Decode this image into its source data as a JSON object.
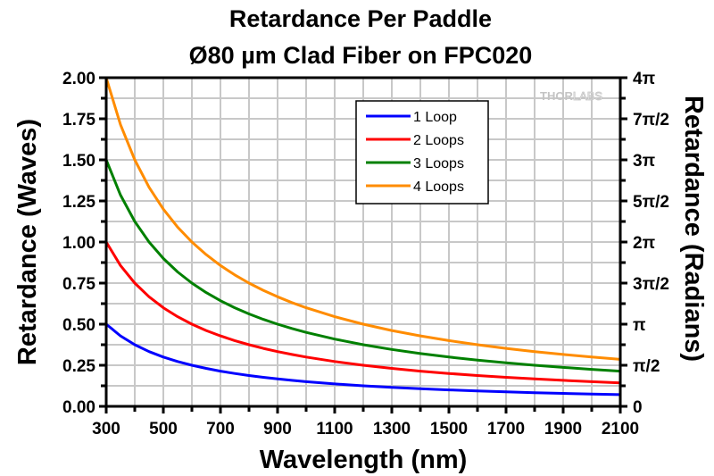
{
  "chart_data": {
    "type": "line",
    "title": [
      "Retardance Per Paddle",
      "Ø80 µm Clad Fiber on FPC020"
    ],
    "xlabel": "Wavelength (nm)",
    "ylabel": "Retardance (Waves)",
    "y2label": "Retardance (Radians)",
    "xlim": [
      300,
      2100
    ],
    "ylim": [
      0,
      2.0
    ],
    "grid": true,
    "x_ticks": [
      300,
      500,
      700,
      900,
      1100,
      1300,
      1500,
      1700,
      1900,
      2100
    ],
    "x_tick_labels": [
      "300",
      "500",
      "700",
      "900",
      "1100",
      "1300",
      "1500",
      "1700",
      "1900",
      "2100"
    ],
    "x_minor_step": 100,
    "y_ticks": [
      0,
      0.25,
      0.5,
      0.75,
      1.0,
      1.25,
      1.5,
      1.75,
      2.0
    ],
    "y_tick_labels": [
      "0.00",
      "0.25",
      "0.50",
      "0.75",
      "1.00",
      "1.25",
      "1.50",
      "1.75",
      "2.00"
    ],
    "y_minor_step": 0.125,
    "y2_tick_labels": [
      "0",
      "π/2",
      "π",
      "3π/2",
      "2π",
      "5π/2",
      "3π",
      "7π/2",
      "4π"
    ],
    "legend_position": "top-center",
    "watermark": {
      "bold": "THOR",
      "outline": "LABS"
    },
    "x": [
      300,
      350,
      400,
      450,
      500,
      550,
      600,
      650,
      700,
      750,
      800,
      850,
      900,
      950,
      1000,
      1100,
      1200,
      1300,
      1400,
      1500,
      1600,
      1700,
      1800,
      1900,
      2000,
      2100
    ],
    "series": [
      {
        "name": "1 Loop",
        "color": "#0000ff",
        "values": [
          0.5,
          0.4286,
          0.375,
          0.3333,
          0.3,
          0.2727,
          0.25,
          0.2308,
          0.2143,
          0.2,
          0.1875,
          0.1765,
          0.1667,
          0.1579,
          0.15,
          0.1364,
          0.125,
          0.1154,
          0.1071,
          0.1,
          0.0938,
          0.0882,
          0.0833,
          0.0789,
          0.075,
          0.0714
        ]
      },
      {
        "name": "2 Loops",
        "color": "#ff0000",
        "values": [
          1.0,
          0.8571,
          0.75,
          0.6667,
          0.6,
          0.5455,
          0.5,
          0.4615,
          0.4286,
          0.4,
          0.375,
          0.3529,
          0.3333,
          0.3158,
          0.3,
          0.2727,
          0.25,
          0.2308,
          0.2143,
          0.2,
          0.1875,
          0.1765,
          0.1667,
          0.1579,
          0.15,
          0.1429
        ]
      },
      {
        "name": "3 Loops",
        "color": "#008000",
        "values": [
          1.5,
          1.2857,
          1.125,
          1.0,
          0.9,
          0.8182,
          0.75,
          0.6923,
          0.6429,
          0.6,
          0.5625,
          0.5294,
          0.5,
          0.4737,
          0.45,
          0.4091,
          0.375,
          0.3462,
          0.3214,
          0.3,
          0.2813,
          0.2647,
          0.25,
          0.2368,
          0.225,
          0.2143
        ]
      },
      {
        "name": "4 Loops",
        "color": "#ff8c00",
        "values": [
          2.0,
          1.7143,
          1.5,
          1.3333,
          1.2,
          1.0909,
          1.0,
          0.9231,
          0.8571,
          0.8,
          0.75,
          0.7059,
          0.6667,
          0.6316,
          0.6,
          0.5455,
          0.5,
          0.4615,
          0.4286,
          0.4,
          0.375,
          0.3529,
          0.3333,
          0.3158,
          0.3,
          0.2857
        ]
      }
    ]
  }
}
